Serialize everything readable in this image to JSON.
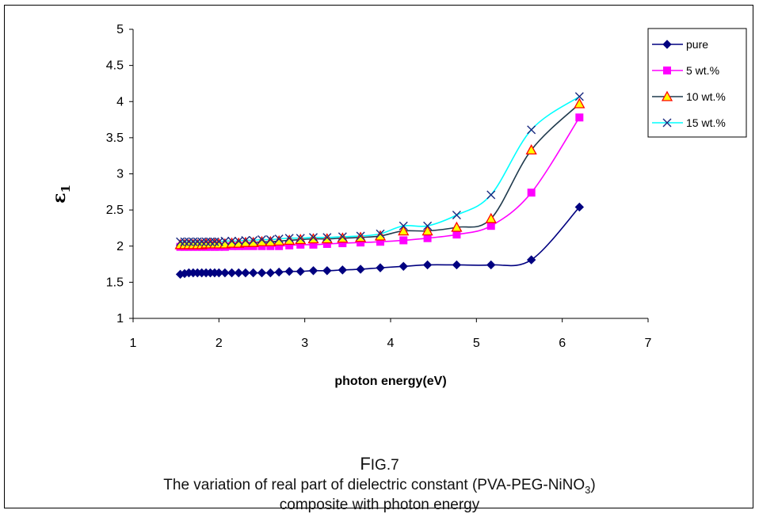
{
  "figure": {
    "fig_label_first": "F",
    "fig_label_rest": "IG.7",
    "caption_line1_main": "The variation of real part of dielectric constant (PVA-PEG-NiNO",
    "caption_line1_sub": "3",
    "caption_line1_end": ")",
    "caption_line2": "composite with photon energy"
  },
  "chart_data": {
    "type": "line",
    "xlabel": "photon energy(eV)",
    "ylabel": "ε",
    "ylabel_sub": "1",
    "xlim": [
      1,
      7
    ],
    "ylim": [
      1,
      5
    ],
    "x_ticks": [
      "1",
      "2",
      "3",
      "4",
      "5",
      "6",
      "7"
    ],
    "y_ticks": [
      "1",
      "1.5",
      "2",
      "2.5",
      "3",
      "3.5",
      "4",
      "4.5",
      "5"
    ],
    "grid": false,
    "legend_position": "top-right",
    "x": [
      1.55,
      1.6,
      1.65,
      1.7,
      1.75,
      1.8,
      1.85,
      1.9,
      1.95,
      2.0,
      2.07,
      2.15,
      2.23,
      2.31,
      2.4,
      2.5,
      2.6,
      2.7,
      2.82,
      2.95,
      3.1,
      3.26,
      3.44,
      3.65,
      3.88,
      4.15,
      4.43,
      4.77,
      5.17,
      5.64,
      6.2
    ],
    "series": [
      {
        "name": "pure",
        "color": "#000080",
        "marker": "diamond",
        "values": [
          1.61,
          1.62,
          1.63,
          1.63,
          1.63,
          1.63,
          1.63,
          1.63,
          1.63,
          1.63,
          1.63,
          1.63,
          1.63,
          1.63,
          1.63,
          1.63,
          1.63,
          1.64,
          1.65,
          1.65,
          1.66,
          1.66,
          1.67,
          1.68,
          1.7,
          1.72,
          1.74,
          1.74,
          1.74,
          1.81,
          2.54
        ]
      },
      {
        "name": "5 wt.%",
        "color": "#ff00ff",
        "marker": "square",
        "values": [
          1.99,
          1.99,
          1.99,
          1.99,
          1.99,
          1.99,
          1.99,
          1.99,
          1.99,
          1.99,
          1.99,
          2.0,
          2.0,
          2.0,
          2.0,
          2.0,
          2.0,
          2.0,
          2.01,
          2.02,
          2.02,
          2.03,
          2.04,
          2.05,
          2.06,
          2.08,
          2.11,
          2.16,
          2.28,
          2.74,
          3.78
        ]
      },
      {
        "name": "10 wt.%",
        "color": "#1f3a4d",
        "marker": "triangle",
        "values": [
          2.02,
          2.02,
          2.02,
          2.02,
          2.02,
          2.02,
          2.03,
          2.03,
          2.03,
          2.03,
          2.03,
          2.04,
          2.04,
          2.05,
          2.05,
          2.06,
          2.06,
          2.07,
          2.08,
          2.09,
          2.1,
          2.1,
          2.11,
          2.12,
          2.14,
          2.21,
          2.21,
          2.26,
          2.38,
          3.33,
          3.97
        ]
      },
      {
        "name": "15 wt.%",
        "color": "#00ffff",
        "marker": "x",
        "values": [
          2.06,
          2.06,
          2.06,
          2.06,
          2.06,
          2.06,
          2.06,
          2.06,
          2.06,
          2.06,
          2.07,
          2.07,
          2.07,
          2.08,
          2.08,
          2.09,
          2.09,
          2.1,
          2.11,
          2.11,
          2.12,
          2.12,
          2.13,
          2.14,
          2.17,
          2.28,
          2.28,
          2.43,
          2.71,
          3.61,
          4.07
        ]
      }
    ]
  }
}
